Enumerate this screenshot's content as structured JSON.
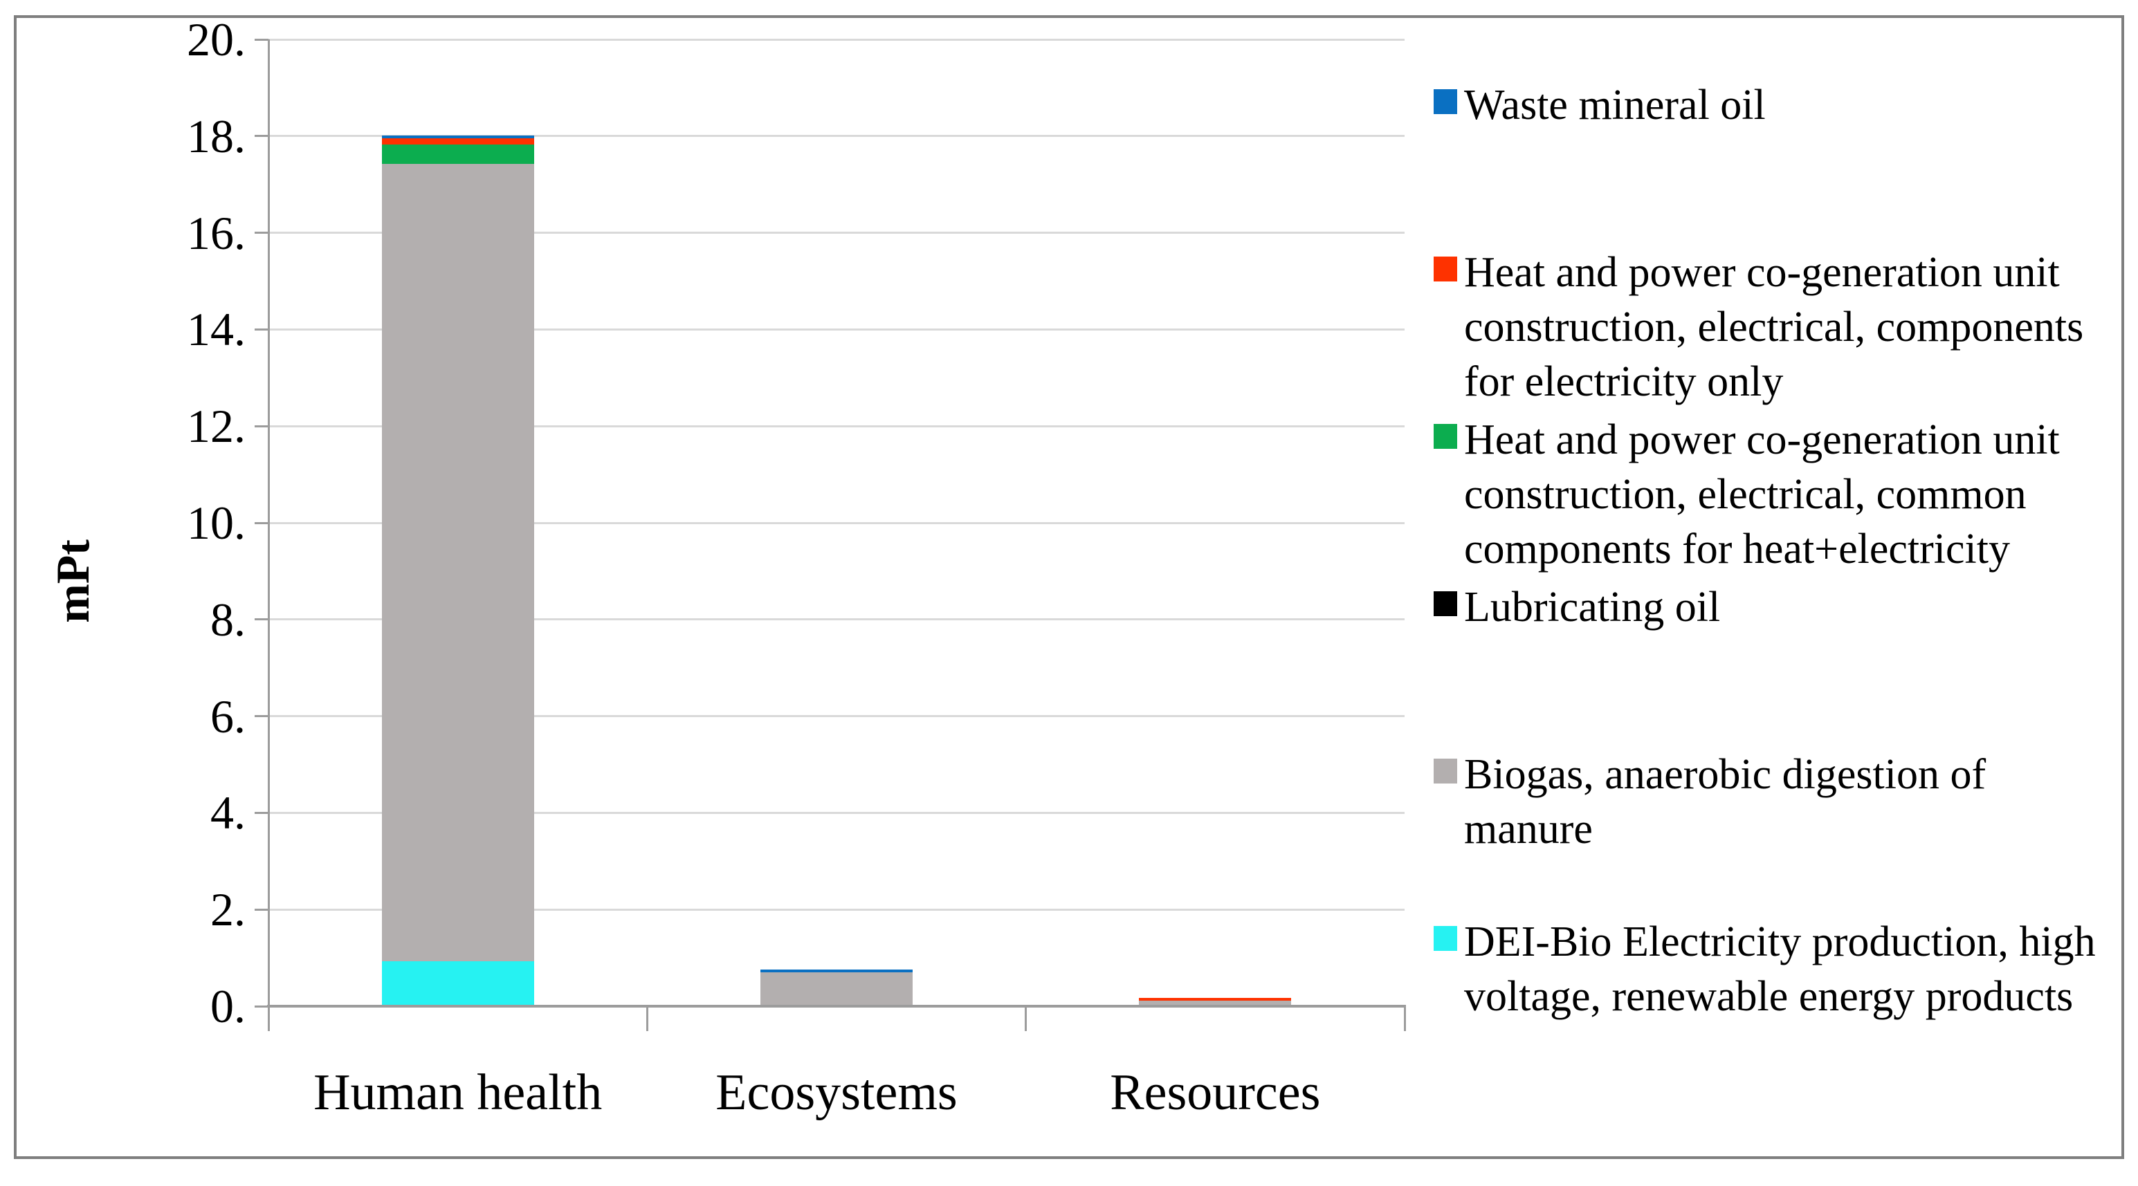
{
  "figure": {
    "background": "#FFFFFF",
    "border_color": "#7F7F7F",
    "gridline_color": "#D9D9D9",
    "axis_color": "#9C9C9C"
  },
  "chart_data": {
    "type": "bar",
    "stacked": true,
    "title": "",
    "xlabel": "",
    "ylabel": "mPt",
    "ylim": [
      0,
      20
    ],
    "ytick_interval": 2,
    "ytick_labels": [
      "0.",
      "2.",
      "4.",
      "6.",
      "8.",
      "10.",
      "12.",
      "14.",
      "16.",
      "18.",
      "20."
    ],
    "grid": "horizontal",
    "legend_position": "right",
    "categories": [
      "Human health",
      "Ecosystems",
      "Resources"
    ],
    "series": [
      {
        "name": "DEI-Bio Electricity production, high voltage, renewable energy products",
        "color": "#26F2F2",
        "values": [
          0.9,
          0,
          0
        ]
      },
      {
        "name": "Biogas, anaerobic digestion of manure",
        "color": "#B3AFAF",
        "values": [
          16.5,
          0.67,
          0.08
        ]
      },
      {
        "name": "Lubricating oil",
        "color": "#000000",
        "values": [
          0,
          0,
          0
        ]
      },
      {
        "name": "Heat and power co-generation unit construction, electrical, common components for heat+electricity",
        "color": "#0CAD4F",
        "values": [
          0.39,
          0,
          0
        ]
      },
      {
        "name": "Heat and power co-generation unit construction,  electrical, components for electricity only",
        "color": "#FE3200",
        "values": [
          0.14,
          0,
          0.06
        ]
      },
      {
        "name": "Waste mineral oil",
        "color": "#0A70C2",
        "values": [
          0.06,
          0.06,
          0
        ]
      }
    ],
    "totals": [
      17.99,
      0.73,
      0.14
    ],
    "legend": [
      {
        "label": "Waste mineral oil",
        "color": "#0A70C2"
      },
      {
        "label": "Heat and power co-generation unit construction,  electrical, components for electricity only",
        "color": "#FE3200"
      },
      {
        "label": "Heat and power co-generation unit construction, electrical, common components for heat+electricity",
        "color": "#0CAD4F"
      },
      {
        "label": "Lubricating oil",
        "color": "#000000"
      },
      {
        "label": "Biogas, anaerobic digestion of manure",
        "color": "#B3AFAF"
      },
      {
        "label": "DEI-Bio Electricity production, high voltage, renewable energy products",
        "color": "#26F2F2"
      }
    ]
  }
}
